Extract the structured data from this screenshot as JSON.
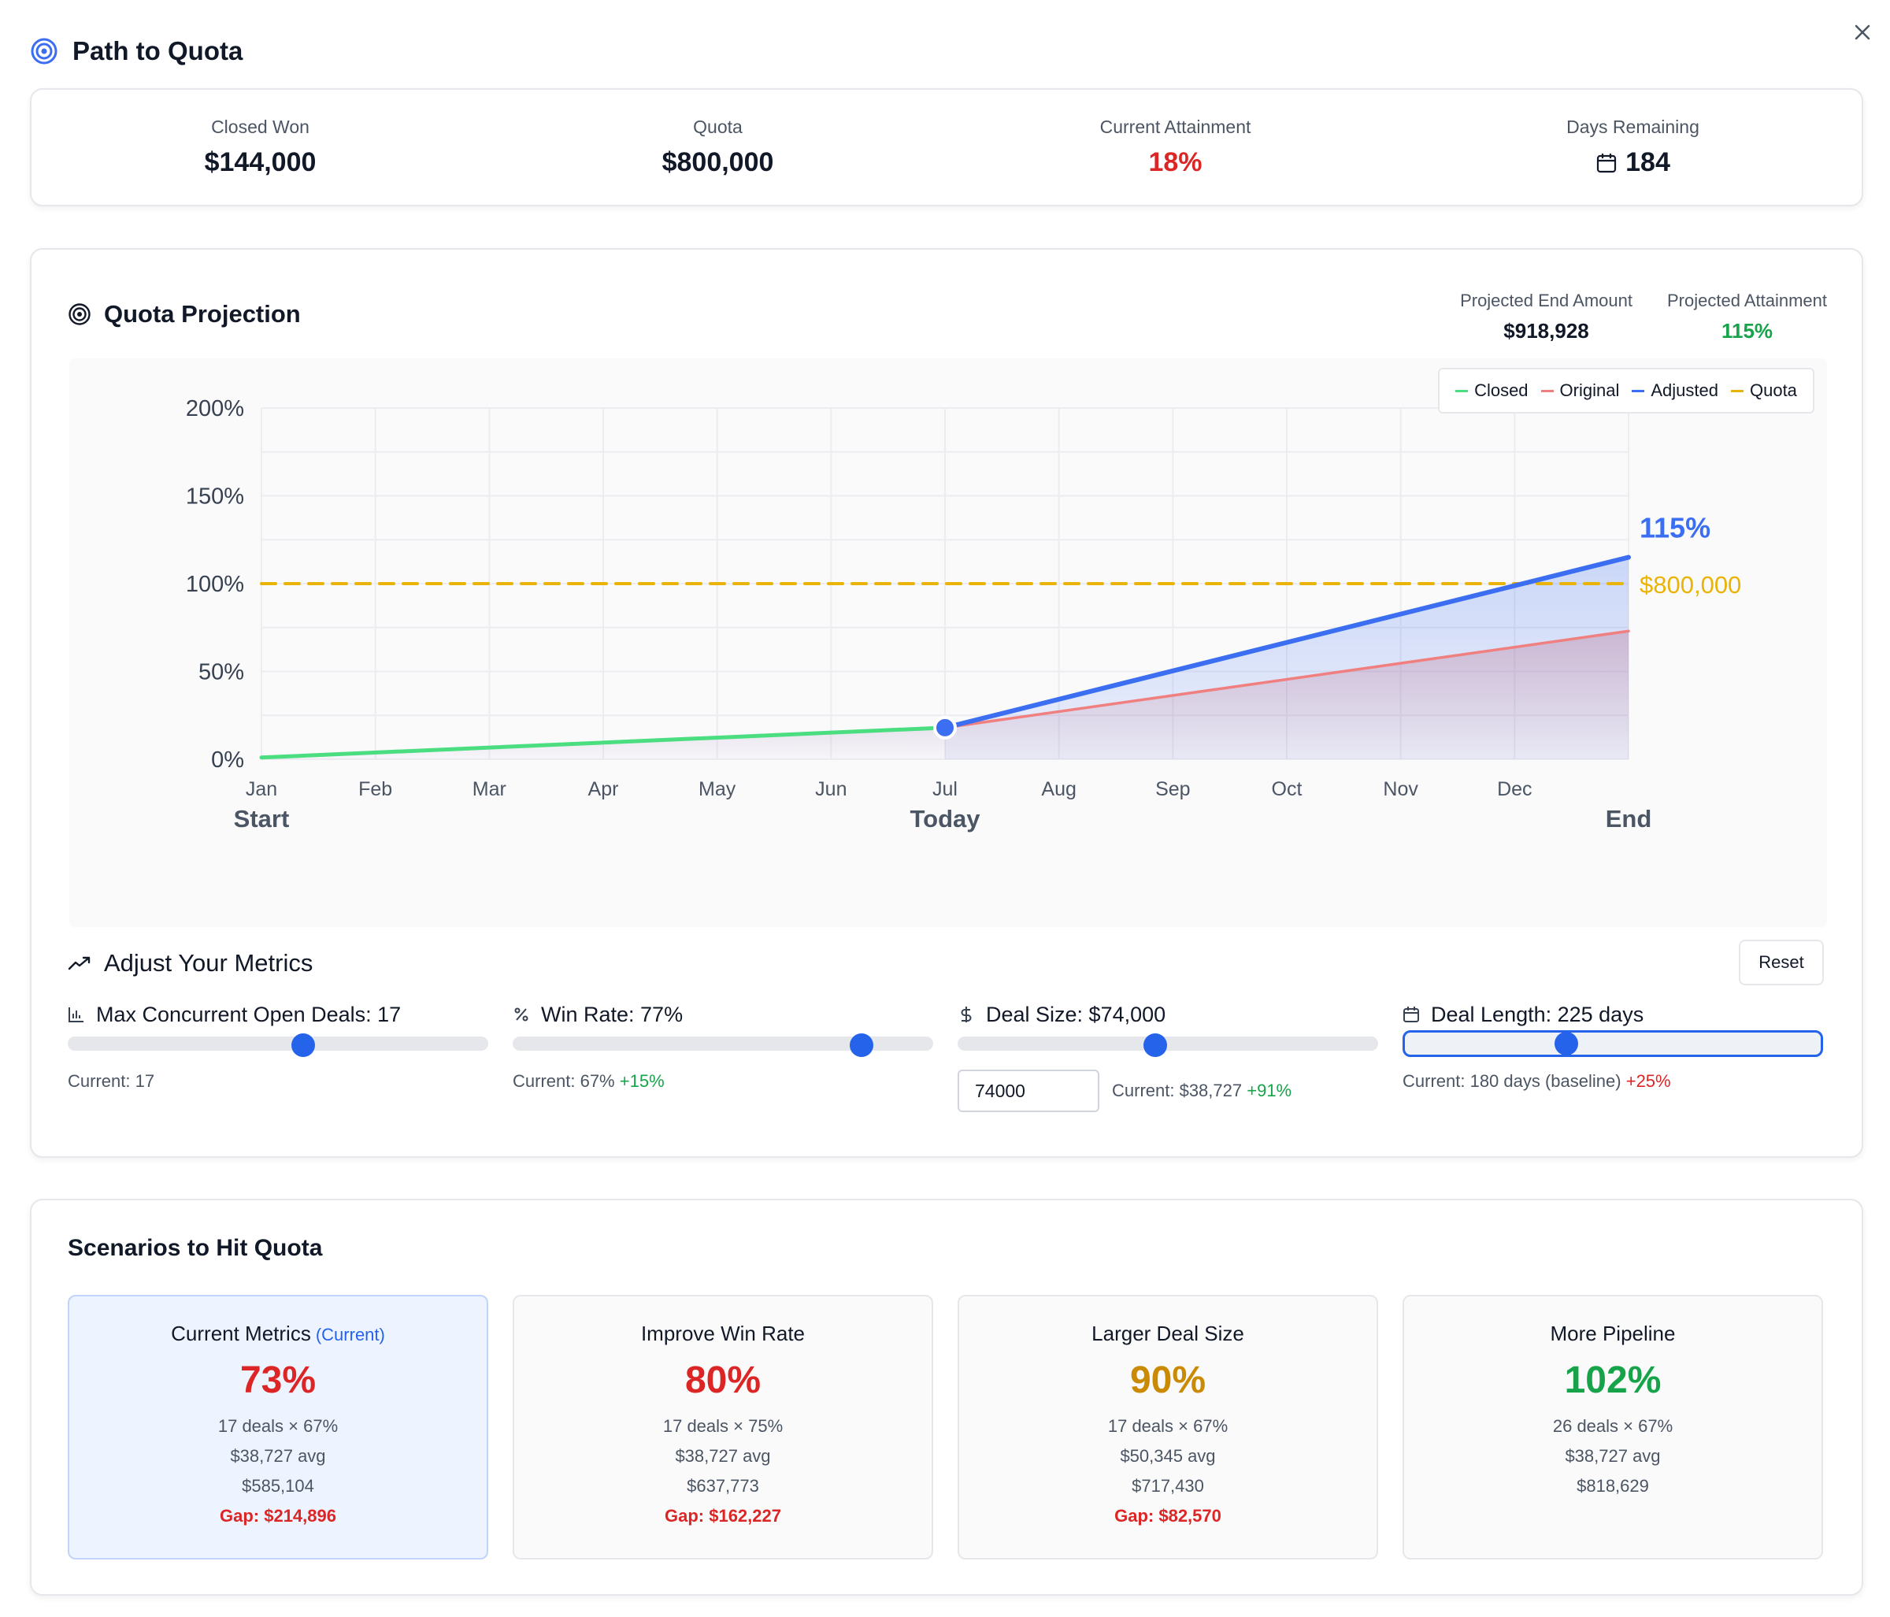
{
  "header": {
    "title": "Path to Quota"
  },
  "summary": [
    {
      "label": "Closed Won",
      "value": "$144,000",
      "tone": "normal"
    },
    {
      "label": "Quota",
      "value": "$800,000",
      "tone": "normal"
    },
    {
      "label": "Current Attainment",
      "value": "18%",
      "tone": "red"
    },
    {
      "label": "Days Remaining",
      "value": "184",
      "tone": "normal"
    }
  ],
  "projection": {
    "title": "Quota Projection",
    "end_amount_label": "Projected End Amount",
    "end_amount": "$918,928",
    "attainment_label": "Projected Attainment",
    "attainment": "115%"
  },
  "chart_data": {
    "type": "line",
    "x": [
      "Jan",
      "Feb",
      "Mar",
      "Apr",
      "May",
      "Jun",
      "Jul",
      "Aug",
      "Sep",
      "Oct",
      "Nov",
      "Dec"
    ],
    "x_markers": [
      {
        "label": "Start",
        "at": 0
      },
      {
        "label": "Today",
        "at": 6
      },
      {
        "label": "End",
        "at": 12
      }
    ],
    "y_ticks": [
      "0%",
      "50%",
      "100%",
      "150%",
      "200%"
    ],
    "ylim": [
      0,
      200
    ],
    "series": [
      {
        "name": "Closed",
        "color": "#4ade80",
        "points": [
          [
            0,
            1
          ],
          [
            6,
            18
          ]
        ]
      },
      {
        "name": "Original",
        "color": "#f08080",
        "points": [
          [
            6,
            18
          ],
          [
            12,
            73
          ]
        ]
      },
      {
        "name": "Adjusted",
        "color": "#3b6ef0",
        "points": [
          [
            6,
            18
          ],
          [
            12,
            115
          ]
        ]
      },
      {
        "name": "Quota",
        "color": "#eab308",
        "dashed": true,
        "points": [
          [
            0,
            100
          ],
          [
            12,
            100
          ]
        ]
      }
    ],
    "annotations": [
      {
        "text": "115%",
        "color": "#3b6ef0",
        "y": 115
      },
      {
        "text": "$800,000",
        "color": "#eab308",
        "y": 100
      }
    ],
    "today_marker": {
      "x": 6,
      "y": 18
    },
    "legend": "top-right",
    "grid": true
  },
  "metrics": {
    "title": "Adjust Your Metrics",
    "reset_label": "Reset",
    "items": [
      {
        "label": "Max Concurrent Open Deals: 17",
        "icon": "bar-chart-icon",
        "value_fraction": 0.56,
        "note": "Current: 17",
        "delta": "",
        "delta_tone": ""
      },
      {
        "label": "Win Rate: 77%",
        "icon": "percent-icon",
        "value_fraction": 0.83,
        "note": "Current: 67%",
        "delta": "+15%",
        "delta_tone": "pos"
      },
      {
        "label": "Deal Size: $74,000",
        "icon": "dollar-icon",
        "value_fraction": 0.47,
        "note": "Current: $38,727",
        "delta": "+91%",
        "delta_tone": "pos",
        "input_value": "74000"
      },
      {
        "label": "Deal Length: 225 days",
        "icon": "calendar-icon",
        "value_fraction": 0.39,
        "note": "Current: 180 days (baseline)",
        "delta": "+25%",
        "delta_tone": "neg"
      }
    ]
  },
  "scenarios": {
    "title": "Scenarios to Hit Quota",
    "items": [
      {
        "name": "Current Metrics",
        "tag": "(Current)",
        "pct": "73%",
        "pct_color": "#dc2626",
        "lines": [
          "17 deals × 67%",
          "$38,727 avg",
          "$585,104"
        ],
        "gap": "Gap: $214,896"
      },
      {
        "name": "Improve Win Rate",
        "tag": "",
        "pct": "80%",
        "pct_color": "#dc2626",
        "lines": [
          "17 deals × 75%",
          "$38,727 avg",
          "$637,773"
        ],
        "gap": "Gap: $162,227"
      },
      {
        "name": "Larger Deal Size",
        "tag": "",
        "pct": "90%",
        "pct_color": "#ca8a04",
        "lines": [
          "17 deals × 67%",
          "$50,345 avg",
          "$717,430"
        ],
        "gap": "Gap: $82,570"
      },
      {
        "name": "More Pipeline",
        "tag": "",
        "pct": "102%",
        "pct_color": "#16a34a",
        "lines": [
          "26 deals × 67%",
          "$38,727 avg",
          "$818,629"
        ],
        "gap": ""
      }
    ]
  }
}
